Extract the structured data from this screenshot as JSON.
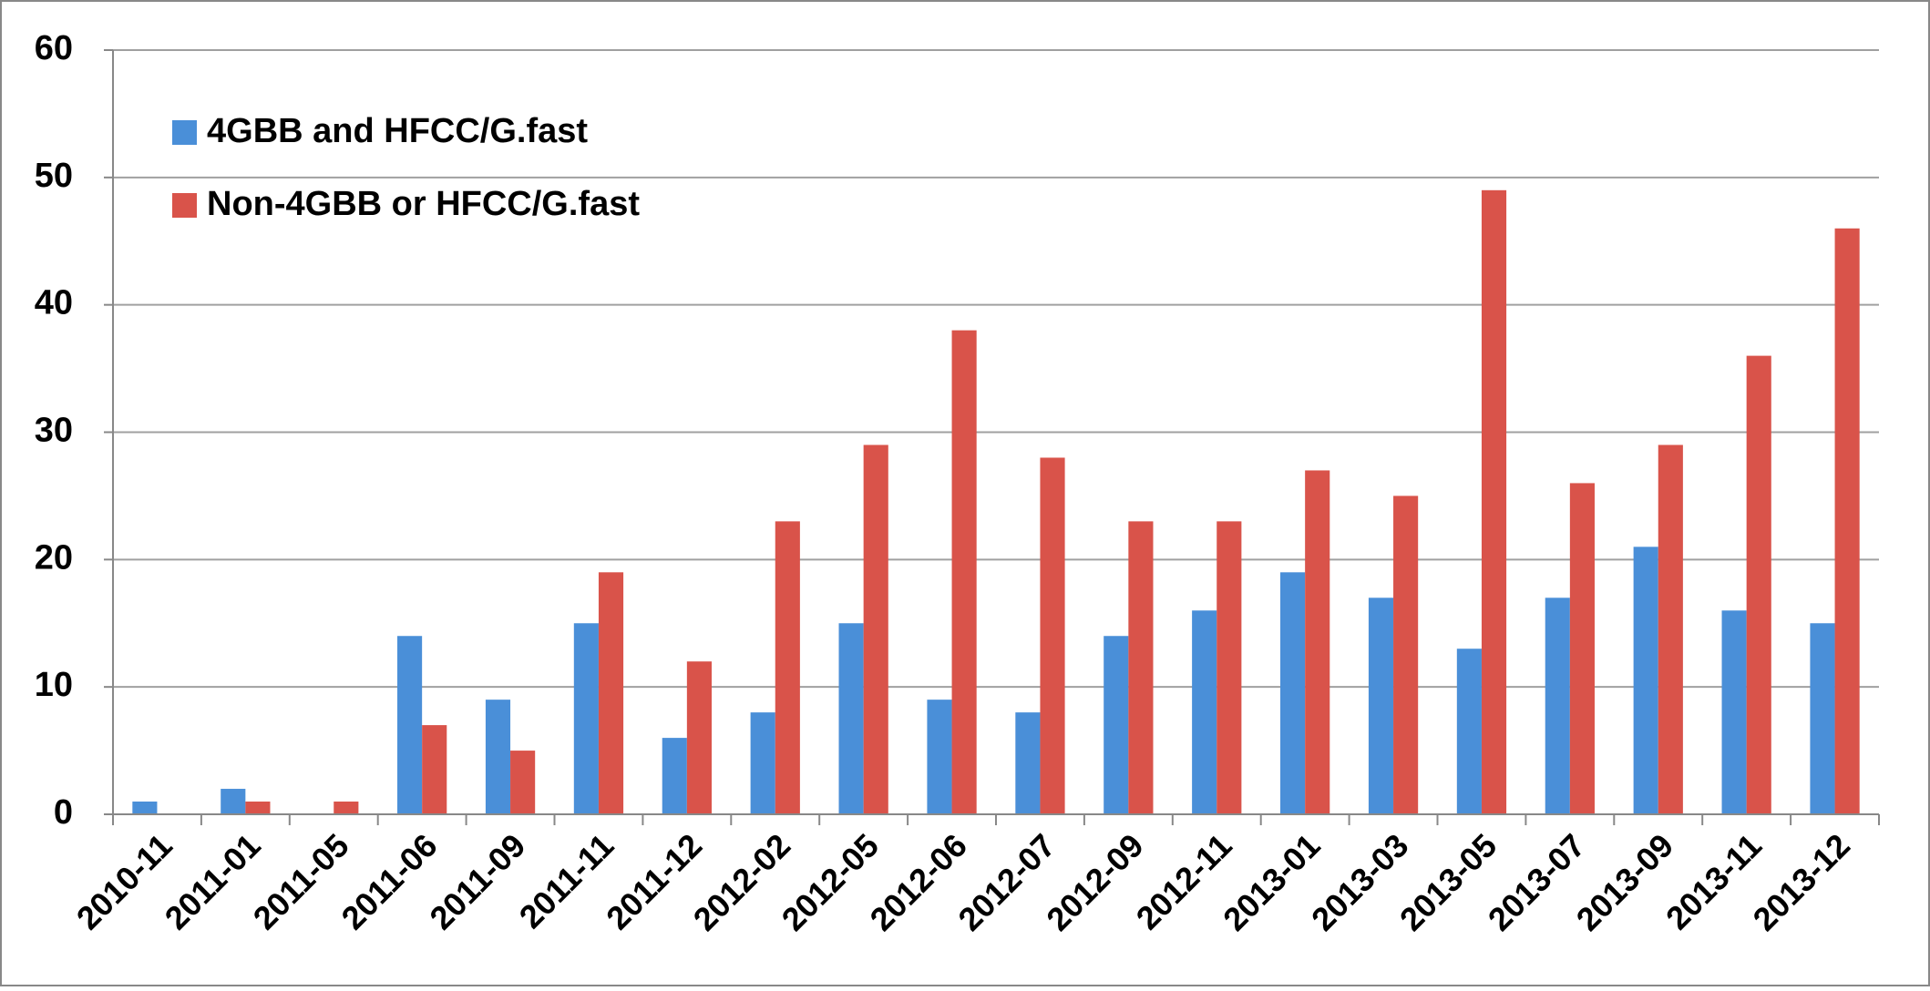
{
  "chart_data": {
    "type": "bar",
    "categories": [
      "2010-11",
      "2011-01",
      "2011-05",
      "2011-06",
      "2011-09",
      "2011-11",
      "2011-12",
      "2012-02",
      "2012-05",
      "2012-06",
      "2012-07",
      "2012-09",
      "2012-11",
      "2013-01",
      "2013-03",
      "2013-05",
      "2013-07",
      "2013-09",
      "2013-11",
      "2013-12"
    ],
    "series": [
      {
        "name": "4GBB and HFCC/G.fast",
        "color": "#4a8fd8",
        "values": [
          1,
          2,
          0,
          14,
          9,
          15,
          6,
          8,
          15,
          9,
          8,
          14,
          16,
          19,
          17,
          13,
          17,
          21,
          16,
          15
        ]
      },
      {
        "name": "Non-4GBB or HFCC/G.fast",
        "color": "#d9534a",
        "values": [
          0,
          1,
          1,
          7,
          5,
          19,
          12,
          23,
          29,
          38,
          28,
          23,
          23,
          27,
          25,
          49,
          26,
          29,
          36,
          46
        ]
      }
    ],
    "ylim": [
      0,
      60
    ],
    "yticks": [
      0,
      10,
      20,
      30,
      40,
      50,
      60
    ],
    "grid": true,
    "legend": "top-left"
  }
}
